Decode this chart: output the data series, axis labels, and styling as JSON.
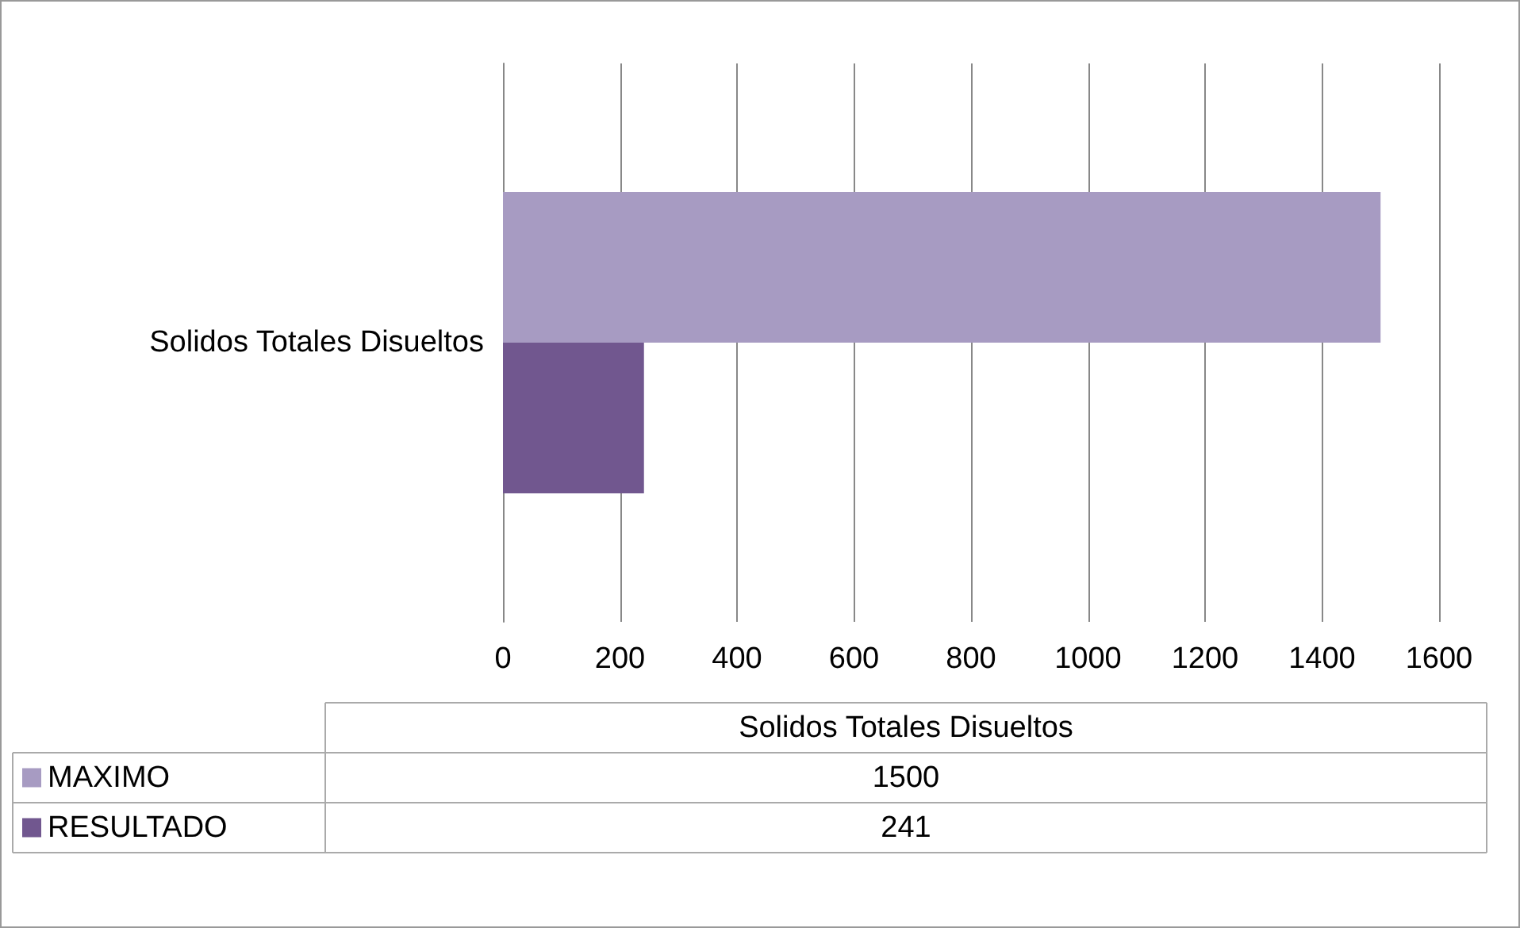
{
  "chart_data": {
    "type": "bar",
    "orientation": "horizontal",
    "categories": [
      "Solidos Totales Disueltos"
    ],
    "series": [
      {
        "name": "MAXIMO",
        "color": "#a79bc2",
        "values": [
          1500
        ]
      },
      {
        "name": "RESULTADO",
        "color": "#71578f",
        "values": [
          241
        ]
      }
    ],
    "xlim": [
      0,
      1600
    ],
    "xticks": [
      0,
      200,
      400,
      600,
      800,
      1000,
      1200,
      1400,
      1600
    ],
    "grid": "x",
    "legend": "bottom",
    "annotations": [
      "1500",
      "241"
    ]
  }
}
